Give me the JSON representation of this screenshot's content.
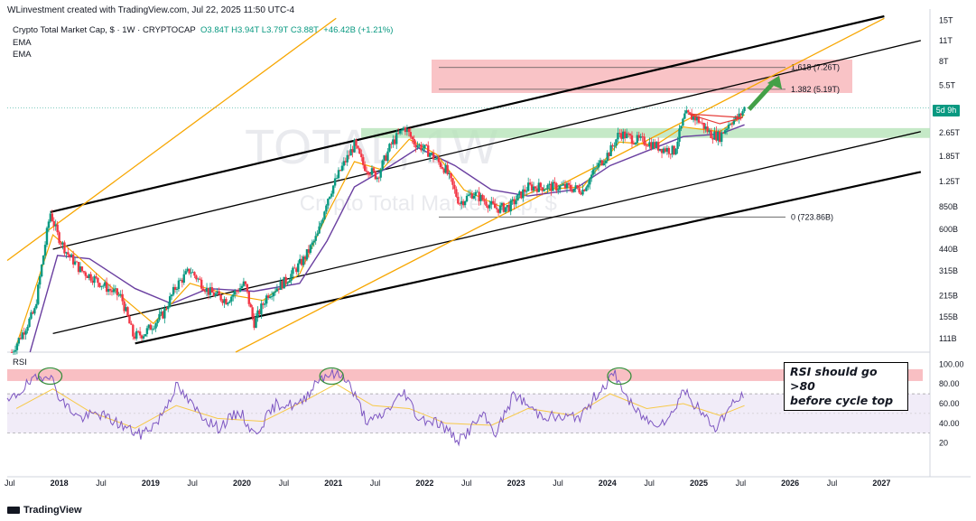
{
  "header": {
    "publisher": "WLinvestment created with TradingView.com, Jul 22, 2025 11:50 UTC-4",
    "symbol": "Crypto Total Market Cap, $ · 1W · CRYPTOCAP",
    "ohlc": "O3.84T  H3.94T  L3.79T  C3.88T",
    "change": "+46.42B (+1.21%)",
    "ema1": "EMA",
    "ema2": "EMA",
    "rsi_label": "RSI"
  },
  "watermark": {
    "big": "TOTAL, 1W",
    "small": "Crypto Total Market Cap, $"
  },
  "annotation": {
    "line1": "RSI should go >80",
    "line2": "before cycle top"
  },
  "price_badge": "5d 9h",
  "footer": {
    "logo": "TradingView"
  },
  "colors": {
    "up": "#089981",
    "down": "#f23645",
    "ema_fast": "#f7a600",
    "ema_slow": "#6a3fa0",
    "rsi": "#7e57c2",
    "rsi_ma": "#f7c948",
    "channel": "#000000",
    "orange_line": "#f7a600",
    "resistance_zone": "#f8b4b8",
    "support_zone": "#b7e4b9"
  },
  "chart_data": {
    "type": "candlestick",
    "title": "Crypto Total Market Cap, $ · 1W · CRYPTOCAP",
    "scale": "log",
    "x_ticks": [
      "Jul",
      "2018",
      "Jul",
      "2019",
      "Jul",
      "2020",
      "Jul",
      "2021",
      "Jul",
      "2022",
      "Jul",
      "2023",
      "Jul",
      "2024",
      "Jul",
      "2025",
      "Jul",
      "2026",
      "Jul",
      "2027"
    ],
    "x_range": [
      2017.5,
      2027.6
    ],
    "y_range_T": [
      0.09,
      16
    ],
    "y_ticks": [
      {
        "label": "15T",
        "v": 15
      },
      {
        "label": "11T",
        "v": 11
      },
      {
        "label": "8T",
        "v": 8
      },
      {
        "label": "5.5T",
        "v": 5.5
      },
      {
        "label": "2.65T",
        "v": 2.65
      },
      {
        "label": "1.85T",
        "v": 1.85
      },
      {
        "label": "1.25T",
        "v": 1.25
      },
      {
        "label": "850B",
        "v": 0.85
      },
      {
        "label": "600B",
        "v": 0.6
      },
      {
        "label": "440B",
        "v": 0.44
      },
      {
        "label": "315B",
        "v": 0.315
      },
      {
        "label": "215B",
        "v": 0.215
      },
      {
        "label": "155B",
        "v": 0.155
      },
      {
        "label": "111B",
        "v": 0.111
      }
    ],
    "price_path": [
      [
        2017.55,
        0.09
      ],
      [
        2017.8,
        0.17
      ],
      [
        2017.97,
        0.78
      ],
      [
        2018.05,
        0.55
      ],
      [
        2018.15,
        0.42
      ],
      [
        2018.3,
        0.32
      ],
      [
        2018.45,
        0.28
      ],
      [
        2018.6,
        0.24
      ],
      [
        2018.75,
        0.21
      ],
      [
        2018.88,
        0.115
      ],
      [
        2019.0,
        0.12
      ],
      [
        2019.2,
        0.16
      ],
      [
        2019.35,
        0.25
      ],
      [
        2019.5,
        0.32
      ],
      [
        2019.7,
        0.23
      ],
      [
        2019.9,
        0.2
      ],
      [
        2020.1,
        0.26
      ],
      [
        2020.2,
        0.14
      ],
      [
        2020.35,
        0.22
      ],
      [
        2020.55,
        0.27
      ],
      [
        2020.75,
        0.38
      ],
      [
        2020.9,
        0.55
      ],
      [
        2021.0,
        0.95
      ],
      [
        2021.15,
        1.5
      ],
      [
        2021.3,
        2.2
      ],
      [
        2021.4,
        1.6
      ],
      [
        2021.55,
        1.35
      ],
      [
        2021.7,
        2.2
      ],
      [
        2021.85,
        2.9
      ],
      [
        2021.95,
        2.3
      ],
      [
        2022.1,
        2.0
      ],
      [
        2022.3,
        1.5
      ],
      [
        2022.45,
        0.9
      ],
      [
        2022.6,
        1.05
      ],
      [
        2022.85,
        0.82
      ],
      [
        2023.0,
        0.85
      ],
      [
        2023.2,
        1.15
      ],
      [
        2023.4,
        1.15
      ],
      [
        2023.6,
        1.15
      ],
      [
        2023.8,
        1.1
      ],
      [
        2023.95,
        1.55
      ],
      [
        2024.1,
        2.0
      ],
      [
        2024.2,
        2.65
      ],
      [
        2024.35,
        2.4
      ],
      [
        2024.5,
        2.3
      ],
      [
        2024.65,
        2.1
      ],
      [
        2024.8,
        2.0
      ],
      [
        2024.92,
        3.5
      ],
      [
        2025.05,
        3.3
      ],
      [
        2025.2,
        2.6
      ],
      [
        2025.3,
        2.5
      ],
      [
        2025.42,
        3.2
      ],
      [
        2025.5,
        3.3
      ],
      [
        2025.57,
        3.88
      ]
    ],
    "ema_fast": [
      [
        2017.6,
        0.1
      ],
      [
        2018.0,
        0.55
      ],
      [
        2018.3,
        0.38
      ],
      [
        2018.8,
        0.2
      ],
      [
        2019.1,
        0.14
      ],
      [
        2019.5,
        0.26
      ],
      [
        2019.9,
        0.22
      ],
      [
        2020.3,
        0.2
      ],
      [
        2020.7,
        0.3
      ],
      [
        2021.0,
        0.75
      ],
      [
        2021.3,
        1.7
      ],
      [
        2021.6,
        1.5
      ],
      [
        2021.9,
        2.4
      ],
      [
        2022.2,
        1.9
      ],
      [
        2022.5,
        1.1
      ],
      [
        2022.9,
        0.85
      ],
      [
        2023.3,
        1.1
      ],
      [
        2023.8,
        1.15
      ],
      [
        2024.2,
        2.3
      ],
      [
        2024.6,
        2.2
      ],
      [
        2024.9,
        2.9
      ],
      [
        2025.3,
        2.7
      ],
      [
        2025.57,
        3.5
      ]
    ],
    "ema_slow": [
      [
        2017.75,
        0.09
      ],
      [
        2018.05,
        0.4
      ],
      [
        2018.4,
        0.38
      ],
      [
        2018.9,
        0.24
      ],
      [
        2019.3,
        0.19
      ],
      [
        2019.7,
        0.24
      ],
      [
        2020.2,
        0.23
      ],
      [
        2020.7,
        0.26
      ],
      [
        2021.0,
        0.5
      ],
      [
        2021.3,
        1.15
      ],
      [
        2021.7,
        1.6
      ],
      [
        2022.0,
        2.1
      ],
      [
        2022.4,
        1.6
      ],
      [
        2022.8,
        1.1
      ],
      [
        2023.2,
        1.0
      ],
      [
        2023.7,
        1.1
      ],
      [
        2024.1,
        1.6
      ],
      [
        2024.5,
        2.0
      ],
      [
        2024.9,
        2.5
      ],
      [
        2025.3,
        2.6
      ],
      [
        2025.57,
        3.0
      ]
    ],
    "levels": [
      {
        "label": "1.618 (7.26T)",
        "value_T": 7.26
      },
      {
        "label": "1.382 (5.19T)",
        "value_T": 5.19
      },
      {
        "label": "0 (723.86B)",
        "value_T": 0.72386
      }
    ],
    "resistance_zone_T": [
      4.9,
      8.2
    ],
    "support_zone_T": [
      2.45,
      2.85
    ],
    "rsi": {
      "y_ticks": [
        {
          "label": "100.00",
          "v": 100
        },
        {
          "label": "80.00",
          "v": 80
        },
        {
          "label": "60.00",
          "v": 60
        },
        {
          "label": "40.00",
          "v": 40
        },
        {
          "label": "20",
          "v": 20
        }
      ],
      "overbought_zone": [
        83,
        95
      ],
      "band": [
        30,
        70
      ],
      "points": [
        [
          2017.5,
          60
        ],
        [
          2017.7,
          78
        ],
        [
          2017.95,
          92
        ],
        [
          2018.1,
          62
        ],
        [
          2018.3,
          45
        ],
        [
          2018.5,
          50
        ],
        [
          2018.75,
          38
        ],
        [
          2018.95,
          28
        ],
        [
          2019.15,
          42
        ],
        [
          2019.35,
          78
        ],
        [
          2019.55,
          55
        ],
        [
          2019.8,
          35
        ],
        [
          2020.05,
          52
        ],
        [
          2020.2,
          28
        ],
        [
          2020.45,
          60
        ],
        [
          2020.7,
          58
        ],
        [
          2020.9,
          85
        ],
        [
          2021.0,
          90
        ],
        [
          2021.2,
          88
        ],
        [
          2021.45,
          40
        ],
        [
          2021.6,
          48
        ],
        [
          2021.85,
          72
        ],
        [
          2022.0,
          45
        ],
        [
          2022.2,
          42
        ],
        [
          2022.45,
          22
        ],
        [
          2022.7,
          48
        ],
        [
          2022.85,
          30
        ],
        [
          2023.05,
          70
        ],
        [
          2023.3,
          50
        ],
        [
          2023.55,
          45
        ],
        [
          2023.8,
          48
        ],
        [
          2023.95,
          70
        ],
        [
          2024.15,
          90
        ],
        [
          2024.35,
          55
        ],
        [
          2024.55,
          40
        ],
        [
          2024.75,
          45
        ],
        [
          2024.9,
          75
        ],
        [
          2025.1,
          50
        ],
        [
          2025.25,
          35
        ],
        [
          2025.4,
          55
        ],
        [
          2025.57,
          70
        ]
      ],
      "ma_points": [
        [
          2017.6,
          55
        ],
        [
          2018.0,
          75
        ],
        [
          2018.4,
          52
        ],
        [
          2018.9,
          35
        ],
        [
          2019.35,
          58
        ],
        [
          2019.8,
          45
        ],
        [
          2020.3,
          42
        ],
        [
          2020.8,
          65
        ],
        [
          2021.1,
          80
        ],
        [
          2021.5,
          58
        ],
        [
          2021.9,
          55
        ],
        [
          2022.3,
          40
        ],
        [
          2022.8,
          38
        ],
        [
          2023.2,
          55
        ],
        [
          2023.7,
          48
        ],
        [
          2024.1,
          70
        ],
        [
          2024.5,
          55
        ],
        [
          2024.9,
          60
        ],
        [
          2025.3,
          48
        ],
        [
          2025.57,
          58
        ]
      ]
    }
  }
}
